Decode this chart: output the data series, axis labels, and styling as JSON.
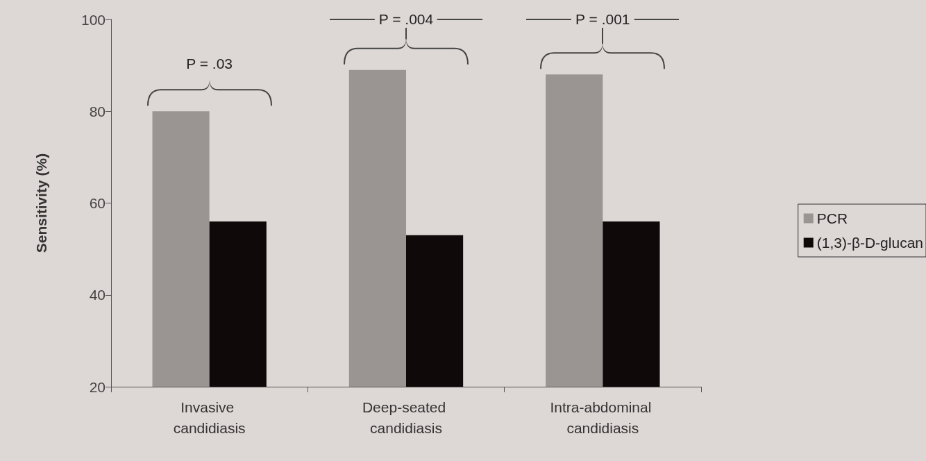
{
  "chart_data": {
    "type": "bar",
    "ylabel": "Sensitivity (%)",
    "categories": [
      "Invasive candidiasis",
      "Deep-seated candidiasis",
      "Intra-abdominal candidiasis"
    ],
    "series": [
      {
        "name": "PCR",
        "color": "#9a9593",
        "values": [
          80,
          89,
          88
        ]
      },
      {
        "name": "(1,3)-β-D-glucan",
        "color": "#0f0909",
        "values": [
          56,
          53,
          56
        ]
      }
    ],
    "ylim": [
      20,
      100
    ],
    "yticks": [
      20,
      40,
      60,
      80,
      100
    ],
    "grid": false,
    "legend": "right",
    "annotations": [
      "P = .03",
      "P = .004",
      "P = .001"
    ]
  }
}
